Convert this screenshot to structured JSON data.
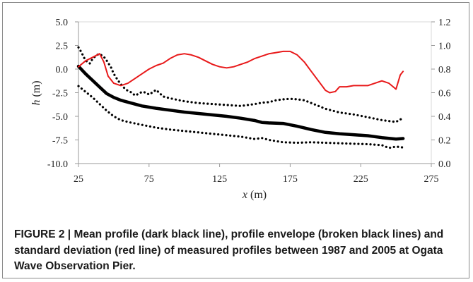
{
  "caption": {
    "label": "FIGURE 2 |",
    "text": "Mean profile (dark black line), profile envelope (broken black lines) and standard deviation (red line) of measured profiles between 1987 and 2005 at Ogata Wave Observation Pier."
  },
  "chart_data": {
    "type": "line",
    "title": "",
    "xlabel_var": "x",
    "xlabel_unit": " (m)",
    "ylabel_var": "h",
    "ylabel_unit": " (m)",
    "xlim": [
      25,
      275
    ],
    "ylim": [
      -10,
      5
    ],
    "y2lim": [
      0,
      1.2
    ],
    "x_ticks": [
      "25",
      "75",
      "125",
      "175",
      "225",
      "275"
    ],
    "y_ticks": [
      "5.0",
      "2.5",
      "0.0",
      "-2.5",
      "-5.0",
      "-7.5",
      "-10.0"
    ],
    "y2_ticks": [
      "1.2",
      "1.0",
      "0.8",
      "0.6",
      "0.4",
      "0.2",
      "0.0"
    ],
    "grid": false,
    "colors": {
      "mean": "#000000",
      "envelope": "#000000",
      "std": "#e8191a"
    },
    "series": [
      {
        "key": "mean",
        "axis": "left",
        "style": "solid-thick",
        "x": [
          25,
          30,
          35,
          40,
          45,
          50,
          55,
          60,
          70,
          80,
          90,
          100,
          110,
          120,
          130,
          140,
          150,
          155,
          160,
          170,
          180,
          190,
          200,
          210,
          220,
          230,
          240,
          250,
          255
        ],
        "y": [
          0.3,
          -0.5,
          -1.2,
          -1.9,
          -2.6,
          -3.0,
          -3.3,
          -3.5,
          -3.9,
          -4.15,
          -4.35,
          -4.55,
          -4.7,
          -4.85,
          -5.0,
          -5.2,
          -5.45,
          -5.65,
          -5.7,
          -5.75,
          -6.05,
          -6.4,
          -6.7,
          -6.85,
          -6.95,
          -7.05,
          -7.25,
          -7.4,
          -7.35
        ]
      },
      {
        "key": "envelope_upper",
        "axis": "left",
        "style": "dotted",
        "x": [
          25,
          27,
          30,
          33,
          35,
          38,
          40,
          43,
          45,
          48,
          50,
          53,
          55,
          58,
          60,
          63,
          65,
          68,
          70,
          73,
          75,
          78,
          80,
          85,
          90,
          100,
          110,
          120,
          130,
          140,
          150,
          155,
          160,
          165,
          170,
          175,
          180,
          185,
          190,
          200,
          210,
          220,
          230,
          240,
          245,
          250,
          252,
          255
        ],
        "y": [
          2.3,
          1.8,
          0.9,
          0.6,
          1.1,
          1.5,
          1.6,
          1.3,
          0.9,
          0.2,
          -0.5,
          -1.2,
          -1.6,
          -2.1,
          -2.3,
          -2.5,
          -2.8,
          -2.6,
          -2.4,
          -2.5,
          -2.7,
          -2.4,
          -2.2,
          -2.9,
          -3.1,
          -3.4,
          -3.6,
          -3.7,
          -3.8,
          -3.9,
          -3.7,
          -3.55,
          -3.5,
          -3.3,
          -3.2,
          -3.15,
          -3.2,
          -3.3,
          -3.6,
          -4.2,
          -4.6,
          -4.8,
          -5.1,
          -5.4,
          -5.5,
          -5.6,
          -5.4,
          -5.2
        ]
      },
      {
        "key": "envelope_lower",
        "axis": "left",
        "style": "dotted",
        "x": [
          25,
          30,
          35,
          40,
          45,
          50,
          55,
          60,
          70,
          80,
          90,
          100,
          110,
          120,
          130,
          140,
          150,
          155,
          160,
          170,
          180,
          190,
          200,
          210,
          220,
          230,
          240,
          245,
          250,
          255
        ],
        "y": [
          -1.8,
          -2.4,
          -3.0,
          -3.7,
          -4.4,
          -5.0,
          -5.4,
          -5.6,
          -5.9,
          -6.2,
          -6.4,
          -6.55,
          -6.7,
          -6.85,
          -7.0,
          -7.15,
          -7.4,
          -7.3,
          -7.5,
          -7.75,
          -7.8,
          -7.75,
          -7.8,
          -7.85,
          -7.9,
          -7.95,
          -8.05,
          -8.35,
          -8.2,
          -8.3
        ]
      },
      {
        "key": "std",
        "axis": "right",
        "style": "solid-thin",
        "x": [
          25,
          30,
          35,
          40,
          43,
          46,
          50,
          55,
          60,
          65,
          70,
          75,
          80,
          85,
          90,
          95,
          100,
          105,
          110,
          115,
          120,
          125,
          130,
          135,
          140,
          145,
          150,
          155,
          160,
          165,
          170,
          175,
          180,
          185,
          190,
          195,
          200,
          203,
          207,
          210,
          215,
          220,
          225,
          230,
          235,
          240,
          245,
          250,
          253,
          255
        ],
        "y": [
          0.82,
          0.87,
          0.9,
          0.93,
          0.86,
          0.74,
          0.68,
          0.66,
          0.68,
          0.72,
          0.76,
          0.8,
          0.83,
          0.85,
          0.89,
          0.92,
          0.93,
          0.92,
          0.9,
          0.87,
          0.84,
          0.82,
          0.81,
          0.82,
          0.84,
          0.86,
          0.89,
          0.91,
          0.93,
          0.94,
          0.95,
          0.95,
          0.92,
          0.86,
          0.78,
          0.7,
          0.62,
          0.6,
          0.61,
          0.65,
          0.65,
          0.66,
          0.66,
          0.66,
          0.68,
          0.7,
          0.68,
          0.63,
          0.75,
          0.78
        ]
      }
    ]
  }
}
